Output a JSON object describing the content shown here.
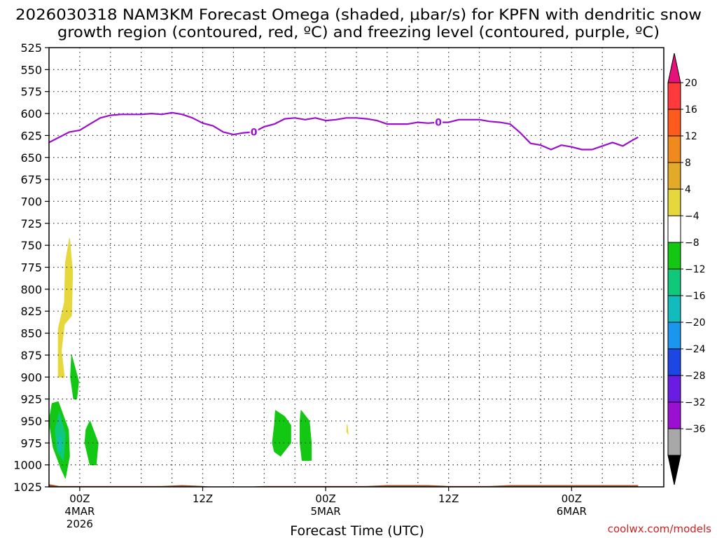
{
  "chart_data": {
    "type": "heatmap",
    "title_line1": "2026030318 NAM3KM Forecast Omega (shaded, μbar/s) for KPFN with dendritic snow",
    "title_line2": "growth region (contoured, red, ºC) and freezing level (contoured, purple, ºC)",
    "xlabel": "Forecast Time (UTC)",
    "credit": "coolwx.com/models",
    "y_axis": {
      "unit": "hPa",
      "range": [
        525,
        1025
      ],
      "ticks": [
        525,
        550,
        575,
        600,
        625,
        650,
        675,
        700,
        725,
        750,
        775,
        800,
        825,
        850,
        875,
        900,
        925,
        950,
        975,
        1000,
        1025
      ]
    },
    "x_axis": {
      "unit": "forecast hours",
      "range": [
        3,
        63
      ],
      "ticks": [
        {
          "hour": 6,
          "labels": [
            "00Z",
            "4MAR",
            "2026"
          ]
        },
        {
          "hour": 18,
          "labels": [
            "12Z"
          ]
        },
        {
          "hour": 30,
          "labels": [
            "00Z",
            "5MAR"
          ]
        },
        {
          "hour": 42,
          "labels": [
            "12Z"
          ]
        },
        {
          "hour": 54,
          "labels": [
            "00Z",
            "6MAR"
          ]
        }
      ]
    },
    "colorbar": {
      "levels": [
        "20",
        "16",
        "12",
        "8",
        "4",
        "−4",
        "−8",
        "−12",
        "−16",
        "−20",
        "−24",
        "−28",
        "−32",
        "−36"
      ],
      "colors": [
        "#ff3a3a",
        "#ff5a1e",
        "#f08a1e",
        "#e2aa28",
        "#e6d83c",
        "#ffffff",
        "#12c812",
        "#10c87a",
        "#12bcbc",
        "#1a96ee",
        "#1c46e6",
        "#6a1ce2",
        "#9a10d2",
        "#a8a8a8"
      ],
      "top_triangle_color": "#e8107a",
      "bottom_triangle_color": "#000000"
    },
    "freezing_level": {
      "color": "#9a10cc",
      "label": "0",
      "points": [
        [
          3,
          633
        ],
        [
          4,
          627
        ],
        [
          5,
          621
        ],
        [
          6,
          619
        ],
        [
          7,
          612
        ],
        [
          8,
          605
        ],
        [
          9,
          602
        ],
        [
          10,
          601
        ],
        [
          11,
          601
        ],
        [
          12,
          601
        ],
        [
          13,
          600
        ],
        [
          14,
          601
        ],
        [
          15,
          599
        ],
        [
          16,
          601
        ],
        [
          17,
          605
        ],
        [
          18,
          611
        ],
        [
          19,
          614
        ],
        [
          20,
          621
        ],
        [
          21,
          624
        ],
        [
          22,
          622
        ],
        [
          23,
          621
        ],
        [
          24,
          615
        ],
        [
          25,
          612
        ],
        [
          26,
          606
        ],
        [
          27,
          605
        ],
        [
          28,
          607
        ],
        [
          29,
          605
        ],
        [
          30,
          608
        ],
        [
          31,
          607
        ],
        [
          32,
          605
        ],
        [
          33,
          605
        ],
        [
          34,
          606
        ],
        [
          35,
          608
        ],
        [
          36,
          612
        ],
        [
          37,
          612
        ],
        [
          38,
          612
        ],
        [
          39,
          610
        ],
        [
          40,
          611
        ],
        [
          41,
          610
        ],
        [
          42,
          610
        ],
        [
          43,
          607
        ],
        [
          44,
          607
        ],
        [
          45,
          607
        ],
        [
          46,
          609
        ],
        [
          47,
          610
        ],
        [
          48,
          612
        ],
        [
          49,
          622
        ],
        [
          50,
          634
        ],
        [
          51,
          636
        ],
        [
          52,
          641
        ],
        [
          53,
          636
        ],
        [
          54,
          638
        ],
        [
          55,
          641
        ],
        [
          56,
          641
        ],
        [
          57,
          637
        ],
        [
          58,
          633
        ],
        [
          59,
          637
        ],
        [
          60,
          630
        ],
        [
          60.5,
          627
        ]
      ],
      "label_hours": [
        23,
        41
      ]
    },
    "omega_regions": [
      {
        "band": "4 to 8",
        "color": "#e6d83c",
        "points": [
          [
            5.0,
            742
          ],
          [
            5.3,
            780
          ],
          [
            5.2,
            830
          ],
          [
            4.5,
            840
          ],
          [
            4.2,
            870
          ],
          [
            4.5,
            900
          ],
          [
            3.9,
            900
          ],
          [
            3.9,
            845
          ],
          [
            4.5,
            815
          ],
          [
            4.6,
            770
          ]
        ]
      },
      {
        "band": "−4 to −8",
        "color": "#12c812",
        "points": [
          [
            3.9,
            928
          ],
          [
            4.9,
            960
          ],
          [
            5.0,
            990
          ],
          [
            4.6,
            1015
          ],
          [
            4.2,
            1005
          ],
          [
            3.4,
            980
          ],
          [
            3.0,
            950
          ],
          [
            3.3,
            930
          ]
        ]
      },
      {
        "band": "−8 to −12",
        "color": "#10c87a",
        "points": [
          [
            4.0,
            940
          ],
          [
            4.6,
            965
          ],
          [
            4.4,
            995
          ],
          [
            3.8,
            985
          ],
          [
            3.6,
            960
          ]
        ]
      },
      {
        "band": "−12 to −16",
        "color": "#12bcbc",
        "points": [
          [
            4.1,
            965
          ],
          [
            4.2,
            985
          ],
          [
            3.95,
            980
          ],
          [
            3.9,
            970
          ]
        ]
      },
      {
        "band": "−4 to −8",
        "color": "#12c812",
        "points": [
          [
            5.2,
            875
          ],
          [
            5.9,
            905
          ],
          [
            5.7,
            925
          ],
          [
            5.4,
            925
          ],
          [
            5.1,
            900
          ]
        ]
      },
      {
        "band": "−4 to −8",
        "color": "#12c812",
        "points": [
          [
            7.0,
            950
          ],
          [
            7.8,
            975
          ],
          [
            7.6,
            1000
          ],
          [
            7.0,
            1000
          ],
          [
            6.5,
            975
          ],
          [
            6.6,
            960
          ]
        ]
      },
      {
        "band": "−4 to −8",
        "color": "#12c812",
        "points": [
          [
            25.1,
            938
          ],
          [
            26.0,
            945
          ],
          [
            26.6,
            955
          ],
          [
            26.6,
            975
          ],
          [
            25.6,
            990
          ],
          [
            25.0,
            985
          ],
          [
            24.8,
            975
          ],
          [
            25.0,
            955
          ]
        ]
      },
      {
        "band": "−4 to −8",
        "color": "#12c812",
        "points": [
          [
            27.6,
            938
          ],
          [
            28.4,
            950
          ],
          [
            28.6,
            975
          ],
          [
            28.6,
            995
          ],
          [
            27.7,
            995
          ],
          [
            27.5,
            975
          ],
          [
            27.5,
            950
          ]
        ]
      },
      {
        "band": "4 to 8",
        "color": "#e6d83c",
        "points": [
          [
            32.1,
            954
          ],
          [
            32.2,
            965
          ],
          [
            32.05,
            962
          ]
        ]
      }
    ],
    "terrain": {
      "color": "#a0522d",
      "points": [
        [
          3,
          1022
        ],
        [
          4,
          1024
        ],
        [
          6,
          1024
        ],
        [
          8,
          1024
        ],
        [
          10,
          1024
        ],
        [
          12,
          1024
        ],
        [
          14,
          1024
        ],
        [
          16,
          1023
        ],
        [
          18,
          1024
        ],
        [
          19,
          1025
        ],
        [
          20,
          1026
        ],
        [
          22,
          1025
        ],
        [
          24,
          1024
        ],
        [
          26,
          1024
        ],
        [
          28,
          1024
        ],
        [
          30,
          1024
        ],
        [
          32,
          1024
        ],
        [
          34,
          1024
        ],
        [
          36,
          1023
        ],
        [
          38,
          1023
        ],
        [
          40,
          1023
        ],
        [
          42,
          1024
        ],
        [
          44,
          1024
        ],
        [
          46,
          1024
        ],
        [
          48,
          1023
        ],
        [
          50,
          1023
        ],
        [
          52,
          1023
        ],
        [
          54,
          1023
        ],
        [
          56,
          1023
        ],
        [
          58,
          1023
        ],
        [
          60,
          1023
        ],
        [
          60.5,
          1023
        ]
      ]
    }
  }
}
